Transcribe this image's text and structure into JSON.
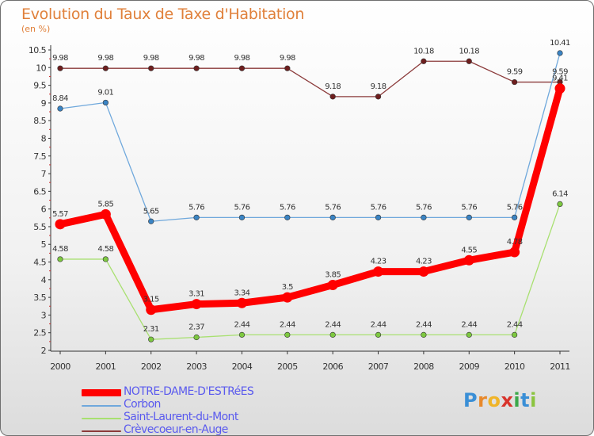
{
  "header": {
    "title": "Evolution du Taux de Taxe d'Habitation",
    "subtitle": "(en %)"
  },
  "logo": {
    "letters": [
      "P",
      "r",
      "o",
      "x",
      "i",
      "t",
      "i"
    ],
    "colors": [
      "#3a8fd6",
      "#e8892b",
      "#f0b428",
      "#d8342c",
      "#3ca84a",
      "#3a8fd6",
      "#8bc43f"
    ]
  },
  "chart_data": {
    "type": "line",
    "title": "Evolution du Taux de Taxe d'Habitation",
    "subtitle": "(en %)",
    "xlabel": "",
    "ylabel": "",
    "x": [
      "2000",
      "2001",
      "2002",
      "2003",
      "2004",
      "2005",
      "2006",
      "2007",
      "2008",
      "2009",
      "2010",
      "2011"
    ],
    "ylim": [
      2,
      10.5
    ],
    "yticks": [
      2,
      2.5,
      3,
      3.5,
      4,
      4.5,
      5,
      5.5,
      6,
      6.5,
      7,
      7.5,
      8,
      8.5,
      9,
      9.5,
      10,
      10.5
    ],
    "grid": false,
    "legend_position": "bottom-left",
    "series": [
      {
        "name": "NOTRE-DAME-D'ESTRéES",
        "color": "#ff0000",
        "text_color": "#5a5aee",
        "thick": true,
        "values": [
          5.57,
          5.85,
          3.15,
          3.31,
          3.34,
          3.5,
          3.85,
          4.23,
          4.23,
          4.55,
          4.78,
          9.41
        ],
        "labels": [
          "5.57",
          "5.85",
          "3.15",
          "3.31",
          "3.34",
          "3.5",
          "3.85",
          "4.23",
          "4.23",
          "4.55",
          "4.78",
          "9.41"
        ]
      },
      {
        "name": "Corbon",
        "color": "#6fa8dc",
        "text_color": "#5a5aee",
        "dot": "#3a84c4",
        "values": [
          8.84,
          9.01,
          5.65,
          5.76,
          5.76,
          5.76,
          5.76,
          5.76,
          5.76,
          5.76,
          5.76,
          10.41
        ],
        "labels": [
          "8.84",
          "9.01",
          "5.65",
          "5.76",
          "5.76",
          "5.76",
          "5.76",
          "5.76",
          "5.76",
          "5.76",
          "5.76",
          "10.41"
        ]
      },
      {
        "name": "Saint-Laurent-du-Mont",
        "color": "#a8e070",
        "text_color": "#5a5aee",
        "dot": "#7dc840",
        "values": [
          4.58,
          4.58,
          2.31,
          2.37,
          2.44,
          2.44,
          2.44,
          2.44,
          2.44,
          2.44,
          2.44,
          6.14
        ],
        "labels": [
          "4.58",
          "4.58",
          "2.31",
          "2.37",
          "2.44",
          "2.44",
          "2.44",
          "2.44",
          "2.44",
          "2.44",
          "2.44",
          "6.14"
        ]
      },
      {
        "name": "Crèvecoeur-en-Auge",
        "color": "#8b3a3a",
        "text_color": "#5a5aee",
        "dot": "#6e1e1e",
        "values": [
          9.98,
          9.98,
          9.98,
          9.98,
          9.98,
          9.98,
          9.18,
          9.18,
          10.18,
          10.18,
          9.59,
          9.59
        ],
        "labels": [
          "9.98",
          "9.98",
          "9.98",
          "9.98",
          "9.98",
          "9.98",
          "9.18",
          "9.18",
          "10.18",
          "10.18",
          "9.59",
          "9.59"
        ]
      }
    ]
  }
}
